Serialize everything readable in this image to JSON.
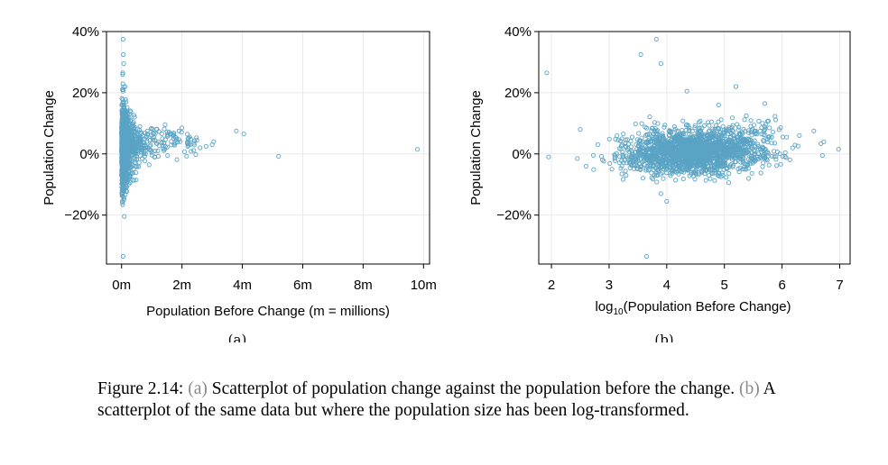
{
  "figure": {
    "sublabels": [
      "(a)",
      "(b)"
    ],
    "caption": {
      "lead": "Figure 2.14:",
      "ref_a": "(a)",
      "text_a": "Scatterplot of population change against the population before the change.",
      "ref_b": "(b)",
      "text_b": "A scatterplot of the same data but where the population size has been log-transformed."
    }
  },
  "chart_data": [
    {
      "type": "scatter",
      "xlabel": "Population Before Change (m = millions)",
      "ylabel": "Population Change",
      "xlim": [
        -0.5,
        10.2
      ],
      "ylim": [
        -36,
        40
      ],
      "x_ticks": [
        0,
        2,
        4,
        6,
        8,
        10
      ],
      "x_tick_labels": [
        "0m",
        "2m",
        "4m",
        "6m",
        "8m",
        "10m"
      ],
      "y_ticks": [
        -20,
        0,
        20,
        40
      ],
      "y_tick_labels": [
        "−20%",
        "0%",
        "20%",
        "40%"
      ],
      "grid": true,
      "point_color": "#5aa3c4",
      "highlight_points": [
        {
          "x": 0.05,
          "y": 37.5
        },
        {
          "x": 0.06,
          "y": 32.5
        },
        {
          "x": 0.07,
          "y": 29.5
        },
        {
          "x": 0.04,
          "y": 26.5
        },
        {
          "x": 0.12,
          "y": 22.0
        },
        {
          "x": 0.05,
          "y": -33.5
        },
        {
          "x": 0.02,
          "y": -15.5
        },
        {
          "x": 0.03,
          "y": -13.0
        },
        {
          "x": 1.6,
          "y": 6.5
        },
        {
          "x": 1.9,
          "y": 7.5
        },
        {
          "x": 2.0,
          "y": 8.5
        },
        {
          "x": 2.2,
          "y": 5.0
        },
        {
          "x": 2.4,
          "y": 3.5
        },
        {
          "x": 2.6,
          "y": 2.0
        },
        {
          "x": 3.0,
          "y": 3.0
        },
        {
          "x": 3.05,
          "y": 4.0
        },
        {
          "x": 3.8,
          "y": 7.5
        },
        {
          "x": 4.05,
          "y": 6.5
        },
        {
          "x": 5.2,
          "y": -0.8
        },
        {
          "x": 9.8,
          "y": 1.5
        },
        {
          "x": 1.2,
          "y": 1.0
        },
        {
          "x": 1.4,
          "y": 3.5
        },
        {
          "x": 2.8,
          "y": 2.5
        }
      ]
    },
    {
      "type": "scatter",
      "xlabel": "log10(Population Before Change)",
      "xlabel_main": "log",
      "xlabel_sub": "10",
      "xlabel_rest": "(Population Before Change)",
      "ylabel": "Population Change",
      "xlim": [
        1.78,
        7.18
      ],
      "ylim": [
        -36,
        40
      ],
      "x_ticks": [
        2,
        3,
        4,
        5,
        6,
        7
      ],
      "x_tick_labels": [
        "2",
        "3",
        "4",
        "5",
        "6",
        "7"
      ],
      "y_ticks": [
        -20,
        0,
        20,
        40
      ],
      "y_tick_labels": [
        "−20%",
        "0%",
        "20%",
        "40%"
      ],
      "grid": true,
      "point_color": "#5aa3c4",
      "highlight_points": [
        {
          "x": 1.92,
          "y": 26.5
        },
        {
          "x": 1.95,
          "y": -1.0
        },
        {
          "x": 3.55,
          "y": 32.5
        },
        {
          "x": 3.82,
          "y": 37.5
        },
        {
          "x": 3.9,
          "y": 29.5
        },
        {
          "x": 3.65,
          "y": -33.5
        },
        {
          "x": 4.35,
          "y": 20.5
        },
        {
          "x": 5.2,
          "y": 22.0
        },
        {
          "x": 6.98,
          "y": 1.5
        },
        {
          "x": 6.7,
          "y": -0.5
        },
        {
          "x": 6.55,
          "y": 7.5
        },
        {
          "x": 2.5,
          "y": 8.0
        },
        {
          "x": 2.45,
          "y": -1.5
        },
        {
          "x": 2.6,
          "y": -4.0
        },
        {
          "x": 4.0,
          "y": -15.5
        },
        {
          "x": 3.9,
          "y": -13.0
        },
        {
          "x": 5.7,
          "y": 16.5
        },
        {
          "x": 4.9,
          "y": 16.0
        },
        {
          "x": 6.3,
          "y": 6.0
        }
      ]
    }
  ]
}
